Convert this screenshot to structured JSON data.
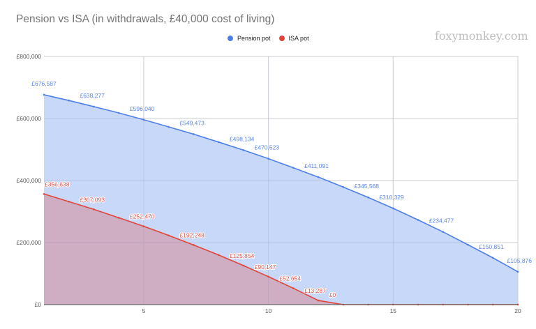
{
  "header": {
    "title": "Pension vs ISA (in withdrawals, £40,000 cost of living)",
    "watermark": "foxymonkey.com"
  },
  "legend": {
    "items": [
      {
        "label": "Pension pot",
        "color": "#4f7fe6"
      },
      {
        "label": "ISA pot",
        "color": "#e0453a"
      }
    ]
  },
  "axes": {
    "y_ticks": [
      "£800,000",
      "£600,000",
      "£400,000",
      "£200,000",
      "£0"
    ],
    "x_ticks": [
      "5",
      "10",
      "15",
      "20"
    ]
  },
  "chart_data": {
    "type": "area",
    "title": "Pension vs ISA (in withdrawals, £40,000 cost of living)",
    "xlabel": "",
    "ylabel": "",
    "x": [
      1,
      2,
      3,
      4,
      5,
      6,
      7,
      8,
      9,
      10,
      11,
      12,
      13,
      14,
      15,
      16,
      17,
      18,
      19,
      20
    ],
    "xlim": [
      1,
      20
    ],
    "ylim": [
      0,
      800000
    ],
    "y_ticks": [
      0,
      200000,
      400000,
      600000,
      800000
    ],
    "x_ticks": [
      5,
      10,
      15,
      20
    ],
    "grid": true,
    "legend_position": "top",
    "series": [
      {
        "name": "Pension pot",
        "color": "#4f7fe6",
        "fill": "#c8d8f8",
        "values": [
          676587,
          658000,
          638277,
          618000,
          596040,
          573000,
          549473,
          524000,
          498134,
          470523,
          441000,
          411091,
          379000,
          345568,
          310329,
          273000,
          234477,
          193000,
          150851,
          105876
        ],
        "labeled": [
          {
            "x": 1,
            "label": "£676,587"
          },
          {
            "x": 3,
            "label": "£638,277"
          },
          {
            "x": 5,
            "label": "£596,040"
          },
          {
            "x": 7,
            "label": "£549,473"
          },
          {
            "x": 9,
            "label": "£498,134"
          },
          {
            "x": 10,
            "label": "£470,523"
          },
          {
            "x": 12,
            "label": "£411,091"
          },
          {
            "x": 14,
            "label": "£345,568"
          },
          {
            "x": 15,
            "label": "£310,329"
          },
          {
            "x": 17,
            "label": "£234,477"
          },
          {
            "x": 19,
            "label": "£150,851"
          },
          {
            "x": 20,
            "label": "£105,876"
          }
        ]
      },
      {
        "name": "ISA pot",
        "color": "#e0453a",
        "fill": "#cfa9bc",
        "values": [
          356638,
          332000,
          307093,
          280000,
          252470,
          223000,
          192248,
          160000,
          125854,
          90147,
          52654,
          13287,
          0,
          0,
          0,
          0,
          0,
          0,
          0,
          0
        ],
        "labeled": [
          {
            "x": 1,
            "label": "£356,638"
          },
          {
            "x": 3,
            "label": "£307,093"
          },
          {
            "x": 5,
            "label": "£252,470"
          },
          {
            "x": 7,
            "label": "£192,248"
          },
          {
            "x": 9,
            "label": "£125,854"
          },
          {
            "x": 10,
            "label": "£90,147"
          },
          {
            "x": 11,
            "label": "£52,654"
          },
          {
            "x": 12,
            "label": "£13,287"
          },
          {
            "x": 13,
            "label": "£0"
          }
        ]
      }
    ]
  }
}
